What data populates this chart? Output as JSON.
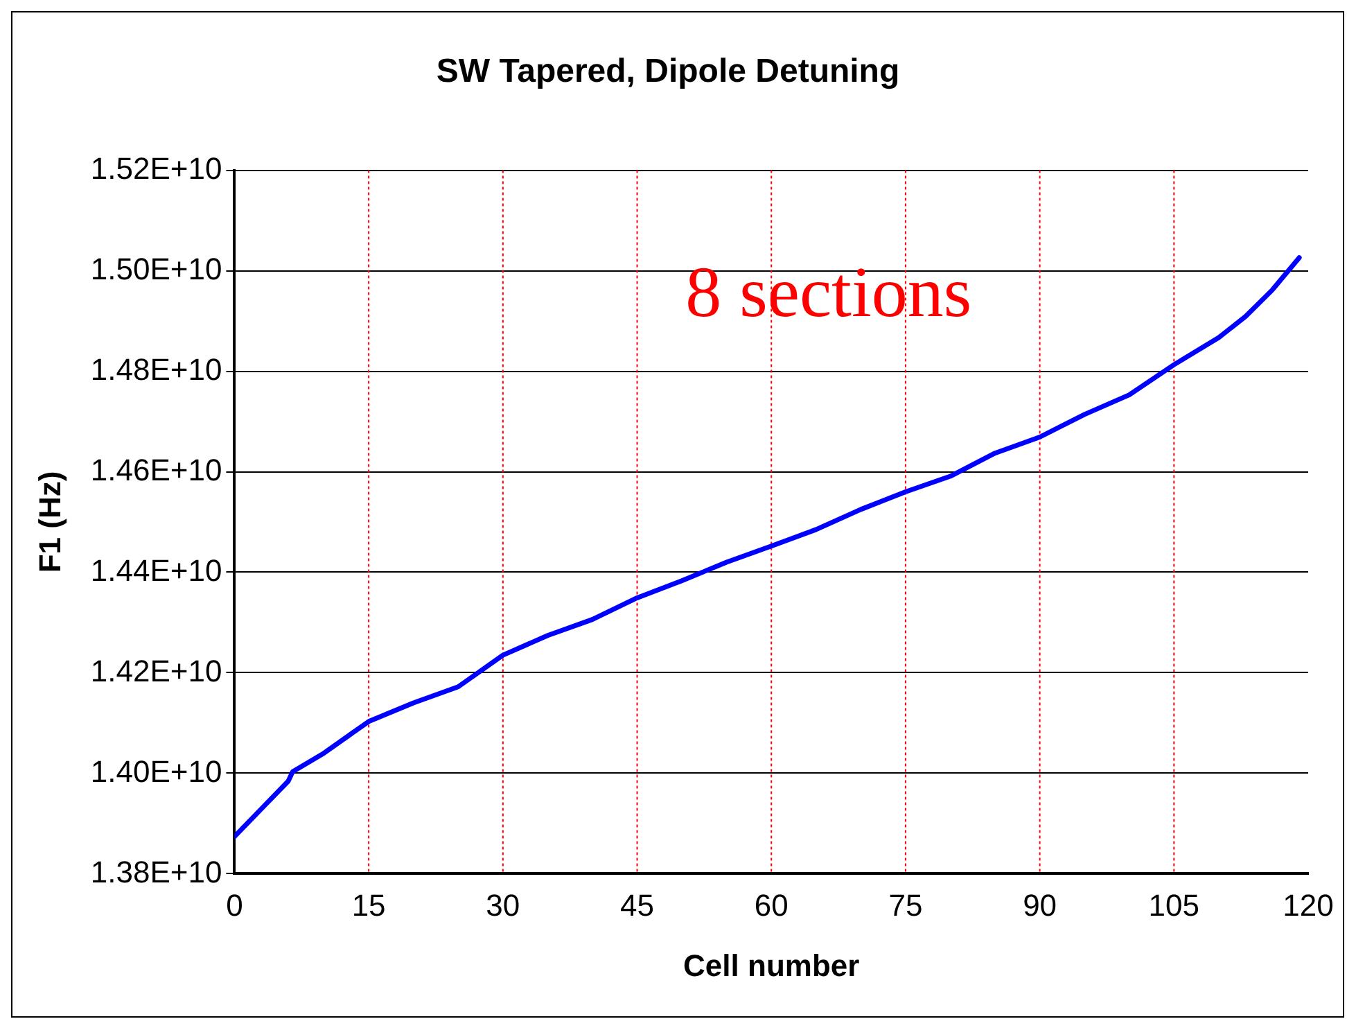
{
  "chart_data": {
    "type": "line",
    "title": "SW Tapered, Dipole Detuning",
    "xlabel": "Cell number",
    "ylabel": "F1 (Hz)",
    "annotations": [
      "8 sections"
    ],
    "x": [
      0,
      3,
      6,
      6.5,
      10,
      15,
      20,
      25,
      30,
      35,
      40,
      45,
      50,
      55,
      60,
      65,
      70,
      75,
      80,
      85,
      90,
      95,
      100,
      105,
      110,
      113,
      116,
      119
    ],
    "series": [
      {
        "color": "#0000ff",
        "values": [
          13874000000,
          13929000000,
          13984000000,
          14003000000,
          14040000000,
          14103000000,
          14140000000,
          14172000000,
          14235000000,
          14274000000,
          14306000000,
          14349000000,
          14383000000,
          14420000000,
          14452000000,
          14485000000,
          14525000000,
          14560000000,
          14591000000,
          14637000000,
          14669000000,
          14714000000,
          14753000000,
          14813000000,
          14867000000,
          14909000000,
          14962000000,
          15026000000
        ]
      }
    ],
    "xlim": [
      0,
      120
    ],
    "xticks": [
      0,
      15,
      30,
      45,
      60,
      75,
      90,
      105,
      120
    ],
    "ylim": [
      13800000000,
      15200000000
    ],
    "yticks": [
      {
        "value": 13800000000,
        "label": "1.38E+10"
      },
      {
        "value": 14000000000,
        "label": "1.40E+10"
      },
      {
        "value": 14200000000,
        "label": "1.42E+10"
      },
      {
        "value": 14400000000,
        "label": "1.44E+10"
      },
      {
        "value": 14600000000,
        "label": "1.46E+10"
      },
      {
        "value": 14800000000,
        "label": "1.48E+10"
      },
      {
        "value": 15000000000,
        "label": "1.50E+10"
      },
      {
        "value": 15200000000,
        "label": "1.52E+10"
      }
    ],
    "grid": true,
    "legend": false,
    "marker": "none",
    "line_style": "solid"
  }
}
